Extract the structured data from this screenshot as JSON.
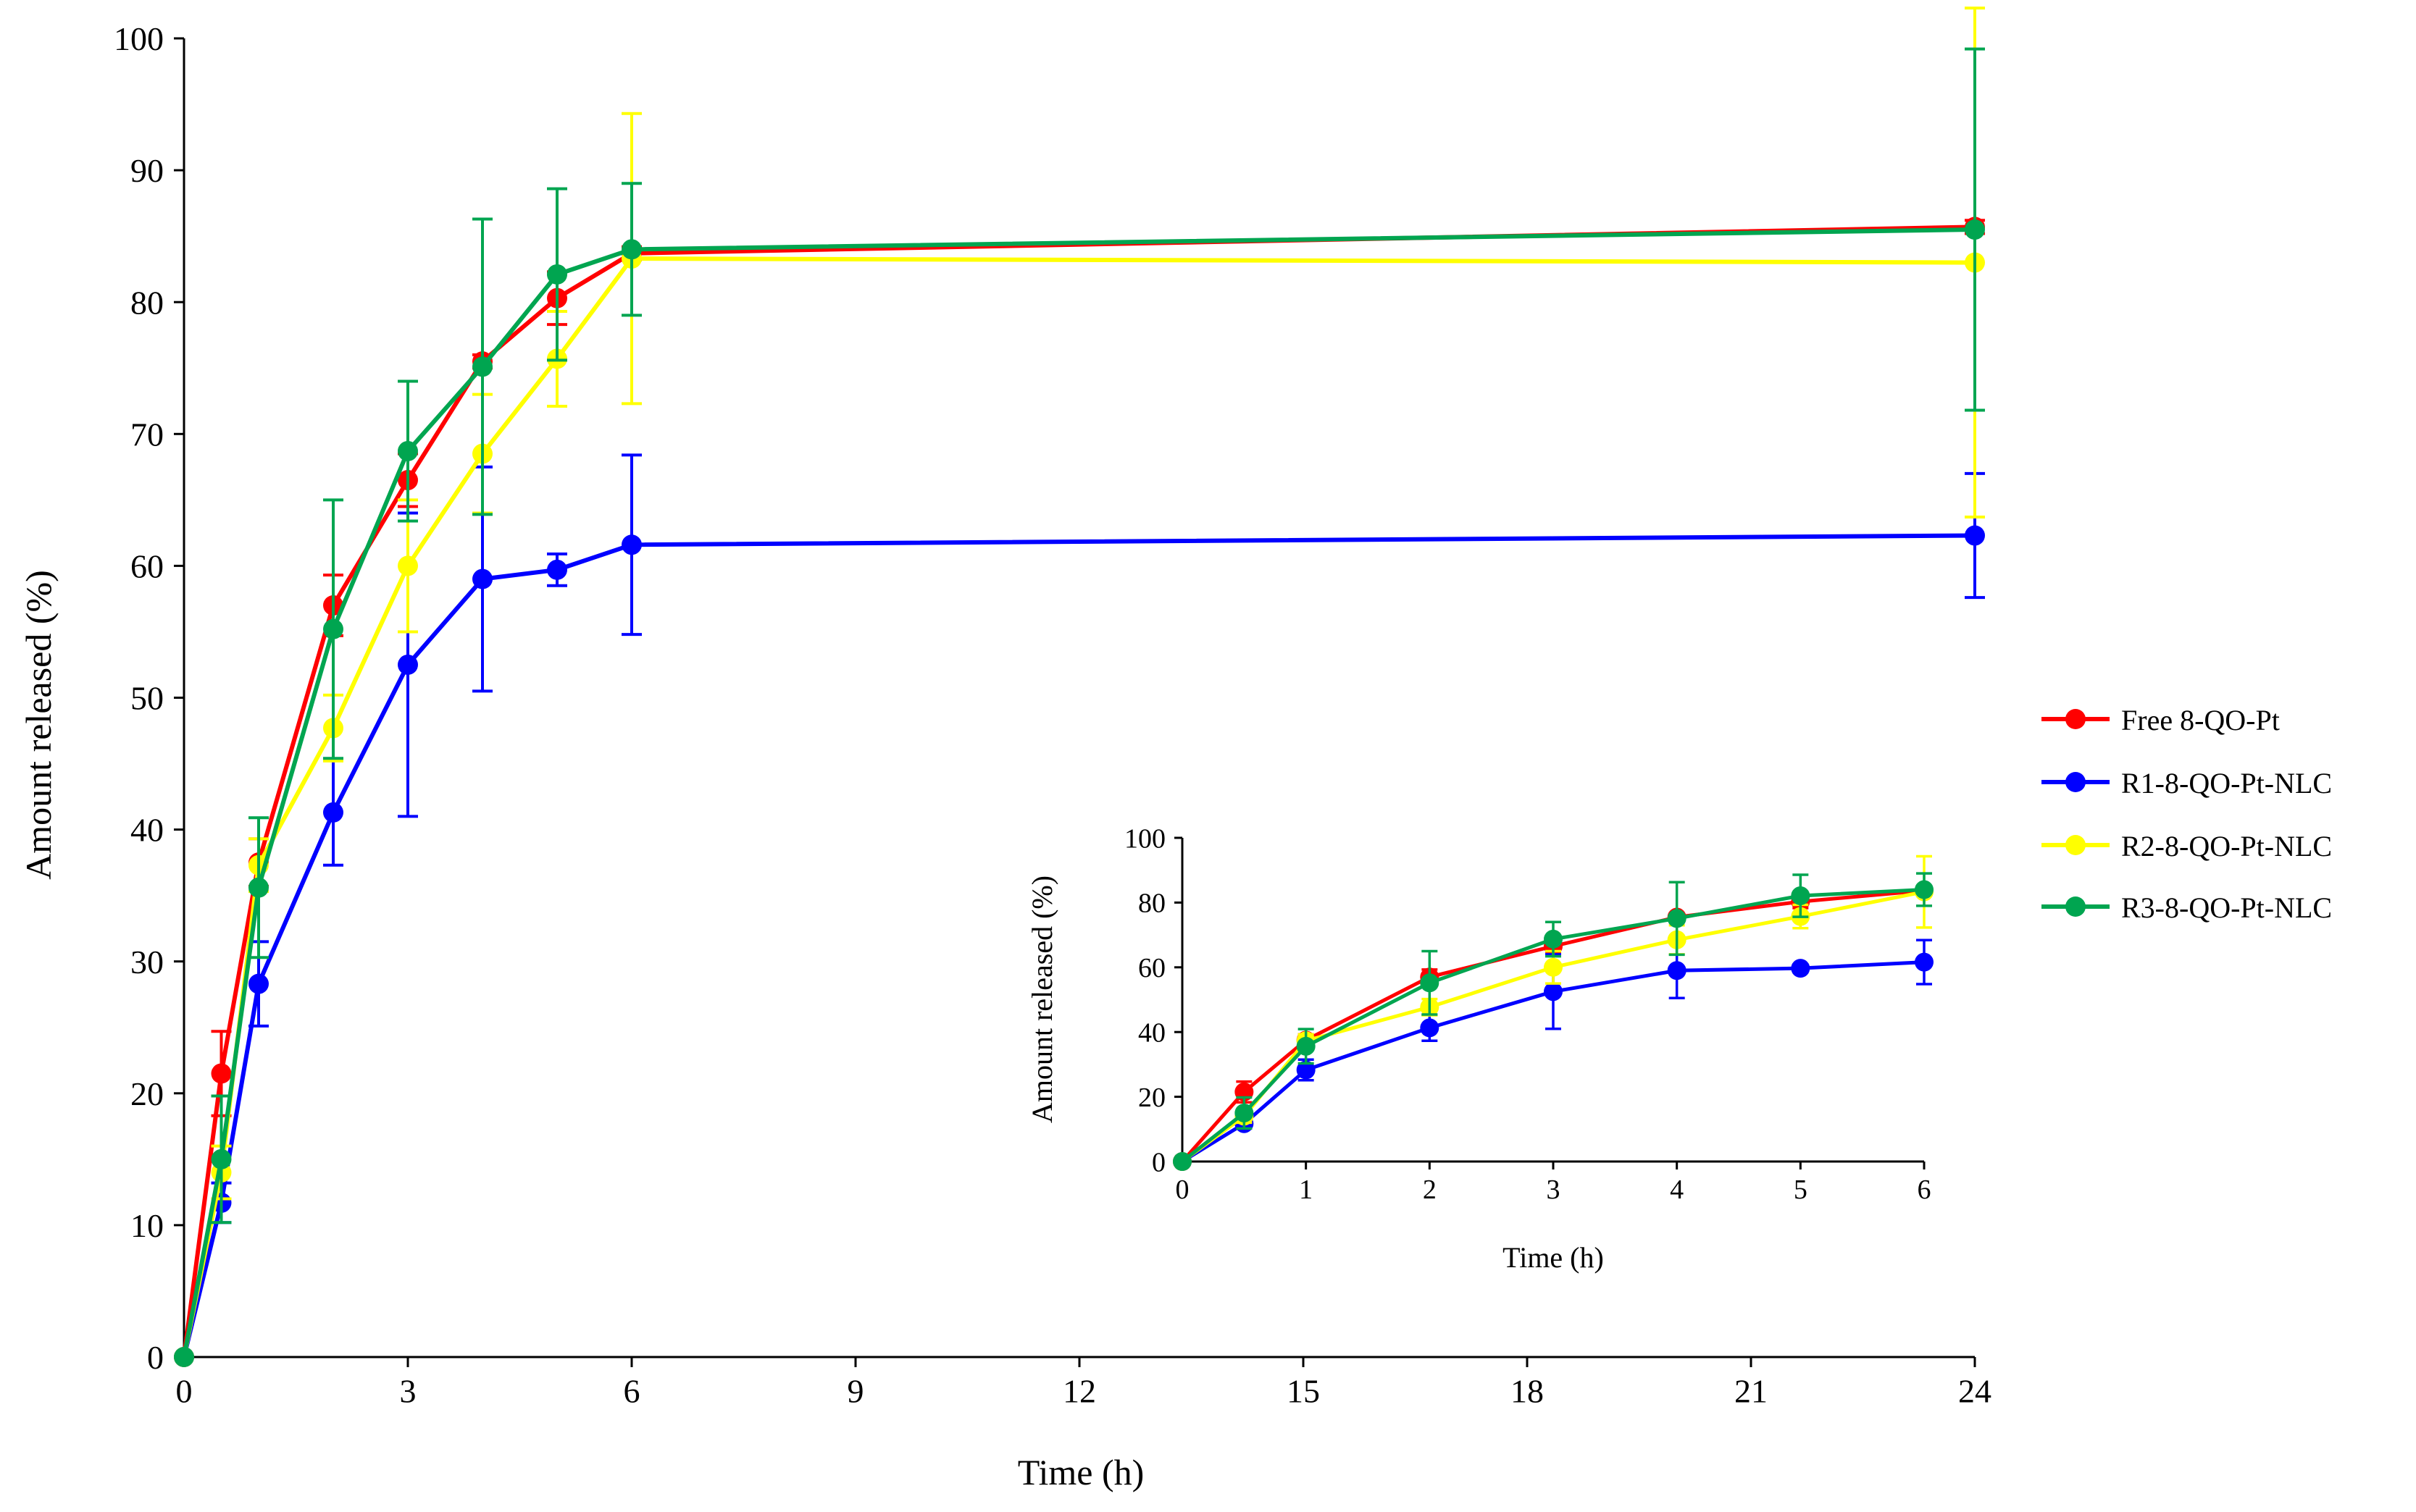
{
  "chart_data": [
    {
      "type": "line",
      "title": "",
      "xlabel": "Time (h)",
      "ylabel": "Amount released (%)",
      "xlim": [
        0,
        24
      ],
      "ylim": [
        0,
        100
      ],
      "xticks": [
        0,
        3,
        6,
        9,
        12,
        15,
        18,
        21,
        24
      ],
      "yticks": [
        0,
        10,
        20,
        30,
        40,
        50,
        60,
        70,
        80,
        90,
        100
      ],
      "grid": false,
      "legend_position": "right",
      "x": [
        0,
        0.5,
        1,
        2,
        3,
        4,
        5,
        6,
        24
      ],
      "series": [
        {
          "name": "Free 8-QO-Pt",
          "color": "#ff0000",
          "values": [
            0,
            21.5,
            37.5,
            57,
            66.5,
            75.5,
            80.3,
            83.7,
            85.7
          ],
          "errors": [
            0,
            3.2,
            1.8,
            2.3,
            2.0,
            0.5,
            2.0,
            0.5,
            0.5
          ]
        },
        {
          "name": "R1-8-QO-Pt-NLC",
          "color": "#0000ff",
          "values": [
            0,
            11.7,
            28.3,
            41.3,
            52.5,
            59.0,
            59.7,
            61.6,
            62.3
          ],
          "errors": [
            0,
            1.5,
            3.2,
            4.0,
            11.5,
            8.5,
            1.2,
            6.8,
            4.7
          ]
        },
        {
          "name": "R2-8-QO-Pt-NLC",
          "color": "#ffff00",
          "values": [
            0,
            14.0,
            37.3,
            47.7,
            60.0,
            68.5,
            75.7,
            83.3,
            83.0
          ],
          "errors": [
            0,
            2.0,
            2.0,
            2.5,
            5.0,
            4.5,
            3.6,
            11.0,
            19.3
          ]
        },
        {
          "name": "R3-8-QO-Pt-NLC",
          "color": "#00a550",
          "values": [
            0,
            15.0,
            35.6,
            55.2,
            68.7,
            75.1,
            82.1,
            84.0,
            85.5
          ],
          "errors": [
            0,
            4.8,
            5.3,
            9.8,
            5.3,
            11.2,
            6.5,
            5.0,
            13.7
          ]
        }
      ]
    },
    {
      "type": "line",
      "title": "",
      "xlabel": "Time (h)",
      "ylabel": "Amount released (%)",
      "xlim": [
        0,
        6
      ],
      "ylim": [
        0,
        100
      ],
      "xticks": [
        0,
        1,
        2,
        3,
        4,
        5,
        6
      ],
      "yticks": [
        0,
        20,
        40,
        60,
        80,
        100
      ],
      "grid": false,
      "legend_position": "none",
      "x": [
        0,
        0.5,
        1,
        2,
        3,
        4,
        5,
        6
      ],
      "series": [
        {
          "name": "Free 8-QO-Pt",
          "color": "#ff0000",
          "values": [
            0,
            21.5,
            37.5,
            57,
            66.5,
            75.5,
            80.3,
            83.7
          ],
          "errors": [
            0,
            3.2,
            1.8,
            2.3,
            2.0,
            0.5,
            2.0,
            0.5
          ]
        },
        {
          "name": "R1-8-QO-Pt-NLC",
          "color": "#0000ff",
          "values": [
            0,
            11.7,
            28.3,
            41.3,
            52.5,
            59.0,
            59.7,
            61.6
          ],
          "errors": [
            0,
            1.5,
            3.2,
            4.0,
            11.5,
            8.5,
            1.2,
            6.8
          ]
        },
        {
          "name": "R2-8-QO-Pt-NLC",
          "color": "#ffff00",
          "values": [
            0,
            14.0,
            37.3,
            47.7,
            60.0,
            68.5,
            75.7,
            83.3
          ],
          "errors": [
            0,
            2.0,
            2.0,
            2.5,
            5.0,
            4.5,
            3.6,
            11.0
          ]
        },
        {
          "name": "R3-8-QO-Pt-NLC",
          "color": "#00a550",
          "values": [
            0,
            15.0,
            35.6,
            55.2,
            68.7,
            75.1,
            82.1,
            84.0
          ],
          "errors": [
            0,
            4.8,
            5.3,
            9.8,
            5.3,
            11.2,
            6.5,
            5.0
          ]
        }
      ]
    }
  ]
}
